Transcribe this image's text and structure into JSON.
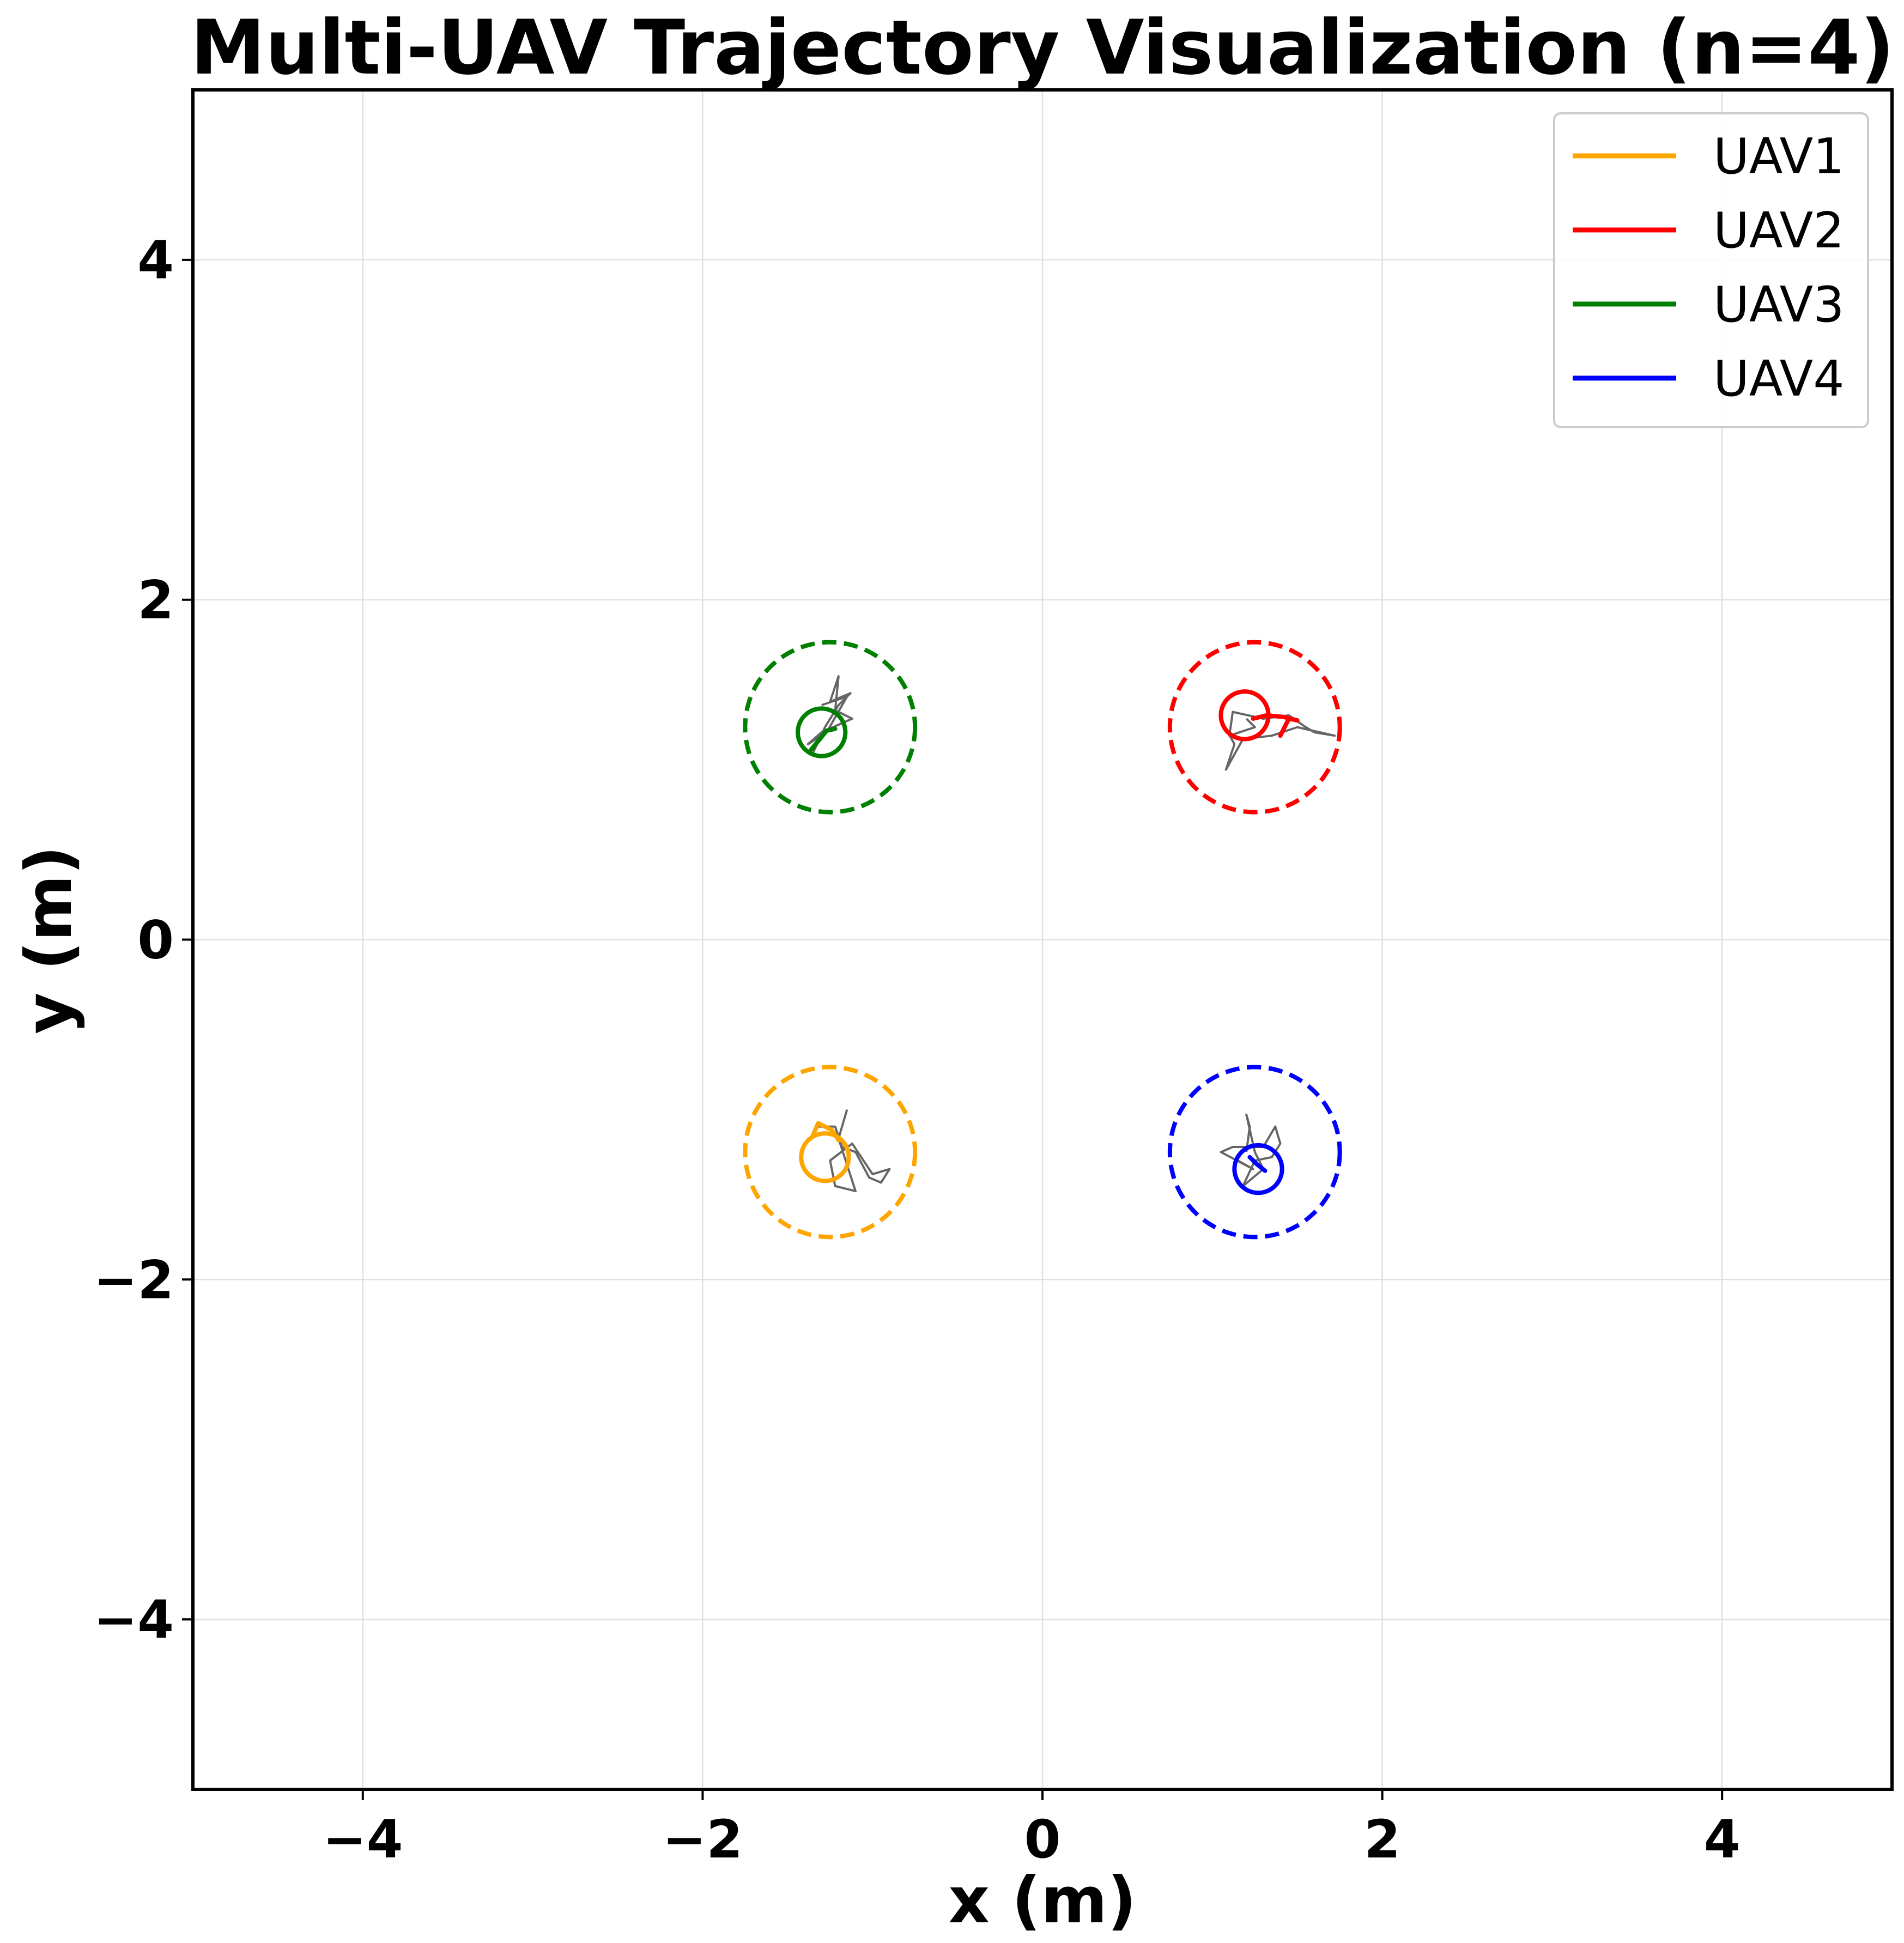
{
  "chart_data": {
    "type": "line",
    "title": "Multi-UAV Trajectory Visualization (n=4)",
    "xlabel": "x (m)",
    "ylabel": "y (m)",
    "xlim": [
      -5,
      5
    ],
    "ylim": [
      -5,
      5
    ],
    "xticks": [
      -4,
      -2,
      0,
      2,
      4
    ],
    "yticks": [
      -4,
      -2,
      0,
      2,
      4
    ],
    "xtick_labels": [
      "−4",
      "−2",
      "0",
      "2",
      "4"
    ],
    "ytick_labels": [
      "−4",
      "−2",
      "0",
      "2",
      "4"
    ],
    "grid": true,
    "legend_position": "top-right",
    "series": [
      {
        "name": "UAV1",
        "color": "#FFA500",
        "target": [
          -1.25,
          -1.25
        ],
        "target_radius": 0.5,
        "current": [
          -1.28,
          -1.28
        ],
        "current_radius": 0.14,
        "trajectory": [
          [
            -1.35,
            -1.15
          ],
          [
            -1.32,
            -1.08
          ],
          [
            -1.24,
            -1.12
          ],
          [
            -1.2,
            -1.18
          ]
        ],
        "noisy_path": [
          [
            -1.33,
            -1.1
          ],
          [
            -1.22,
            -1.1
          ],
          [
            -1.18,
            -1.22
          ],
          [
            -1.1,
            -1.25
          ],
          [
            -1.02,
            -1.4
          ],
          [
            -0.95,
            -1.43
          ],
          [
            -0.9,
            -1.35
          ],
          [
            -1.0,
            -1.38
          ],
          [
            -1.12,
            -1.2
          ],
          [
            -1.25,
            -1.3
          ],
          [
            -1.22,
            -1.45
          ],
          [
            -1.1,
            -1.48
          ],
          [
            -1.2,
            -1.17
          ],
          [
            -1.15,
            -1.0
          ]
        ]
      },
      {
        "name": "UAV2",
        "color": "#FF0000",
        "target": [
          1.25,
          1.25
        ],
        "target_radius": 0.5,
        "current": [
          1.19,
          1.32
        ],
        "current_radius": 0.14,
        "trajectory": [
          [
            1.24,
            1.3
          ],
          [
            1.32,
            1.32
          ],
          [
            1.42,
            1.31
          ],
          [
            1.5,
            1.29
          ],
          [
            1.45,
            1.3
          ],
          [
            1.42,
            1.24
          ],
          [
            1.4,
            1.2
          ]
        ],
        "noisy_path": [
          [
            1.2,
            1.3
          ],
          [
            1.25,
            1.25
          ],
          [
            1.1,
            1.2
          ],
          [
            1.12,
            1.34
          ],
          [
            1.3,
            1.3
          ],
          [
            1.45,
            1.32
          ],
          [
            1.55,
            1.25
          ],
          [
            1.6,
            1.22
          ],
          [
            1.72,
            1.2
          ],
          [
            1.5,
            1.25
          ],
          [
            1.35,
            1.2
          ],
          [
            1.18,
            1.18
          ],
          [
            1.08,
            1.0
          ],
          [
            1.13,
            1.15
          ],
          [
            1.06,
            1.28
          ]
        ]
      },
      {
        "name": "UAV3",
        "color": "#008000",
        "target": [
          -1.25,
          1.25
        ],
        "target_radius": 0.5,
        "current": [
          -1.3,
          1.22
        ],
        "current_radius": 0.14,
        "trajectory": [
          [
            -1.36,
            1.12
          ],
          [
            -1.31,
            1.18
          ],
          [
            -1.27,
            1.23
          ],
          [
            -1.22,
            1.24
          ]
        ],
        "noisy_path": [
          [
            -1.35,
            1.1
          ],
          [
            -1.28,
            1.25
          ],
          [
            -1.2,
            1.38
          ],
          [
            -1.13,
            1.45
          ],
          [
            -1.25,
            1.4
          ],
          [
            -1.2,
            1.55
          ],
          [
            -1.22,
            1.35
          ],
          [
            -1.12,
            1.3
          ],
          [
            -1.3,
            1.22
          ],
          [
            -1.38,
            1.15
          ],
          [
            -1.27,
            1.22
          ],
          [
            -1.15,
            1.43
          ],
          [
            -1.3,
            1.38
          ]
        ]
      },
      {
        "name": "UAV4",
        "color": "#0000FF",
        "target": [
          1.25,
          -1.25
        ],
        "target_radius": 0.5,
        "current": [
          1.27,
          -1.35
        ],
        "current_radius": 0.14,
        "trajectory": [
          [
            1.22,
            -1.28
          ],
          [
            1.26,
            -1.32
          ],
          [
            1.31,
            -1.36
          ]
        ],
        "noisy_path": [
          [
            1.2,
            -1.25
          ],
          [
            1.22,
            -1.1
          ],
          [
            1.2,
            -1.03
          ],
          [
            1.25,
            -1.25
          ],
          [
            1.3,
            -1.35
          ],
          [
            1.18,
            -1.45
          ],
          [
            1.25,
            -1.3
          ],
          [
            1.35,
            -1.28
          ],
          [
            1.4,
            -1.2
          ],
          [
            1.37,
            -1.1
          ],
          [
            1.3,
            -1.22
          ],
          [
            1.12,
            -1.22
          ],
          [
            1.05,
            -1.25
          ],
          [
            1.24,
            -1.35
          ],
          [
            1.15,
            -1.3
          ]
        ]
      }
    ]
  },
  "colors": {
    "noisy_path": "#000000",
    "grid": "#e0e0e0",
    "axes": "#000000"
  }
}
